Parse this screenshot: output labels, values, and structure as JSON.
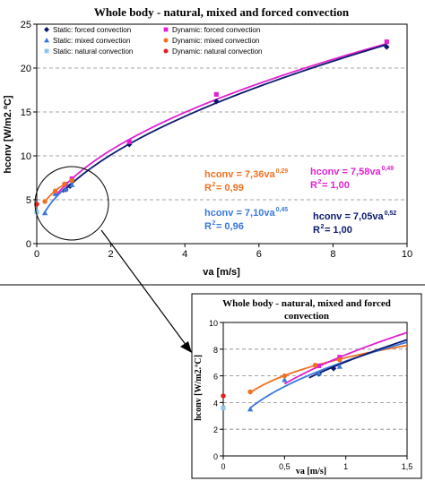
{
  "colors": {
    "forced": "#0b1a6e",
    "mixed": "#3a78d8",
    "natural": "#8cc6f0",
    "dyn_forced": "#e020d0",
    "dyn_mixed": "#f07020",
    "dyn_natural": "#e02020"
  },
  "chart_data": [
    {
      "type": "scatter",
      "title": "Whole body - natural, mixed and forced convection",
      "xlabel": "va [m/s]",
      "ylabel": "hconv [W/m2.ºC]",
      "xlim": [
        0,
        10
      ],
      "ylim": [
        0,
        25
      ],
      "xticks": [
        "0",
        "2",
        "4",
        "6",
        "8",
        "10"
      ],
      "yticks": [
        "0",
        "5",
        "10",
        "15",
        "20",
        "25"
      ],
      "grid": "horizontal dashed",
      "legend_position": "top-left",
      "series": [
        {
          "name": "Static: forced convection",
          "marker": "diamond",
          "color_key": "forced",
          "points": [
            [
              0.78,
              6.15
            ],
            [
              0.9,
              6.55
            ],
            [
              2.5,
              11.3
            ],
            [
              4.85,
              16.2
            ],
            [
              9.45,
              22.4
            ]
          ]
        },
        {
          "name": "Dynamic: forced convection",
          "marker": "square",
          "color_key": "dyn_forced",
          "points": [
            [
              0.78,
              6.75
            ],
            [
              0.95,
              7.4
            ],
            [
              2.5,
              11.6
            ],
            [
              4.85,
              17.0
            ],
            [
              9.45,
              23.0
            ]
          ]
        },
        {
          "name": "Static: mixed convection",
          "marker": "triangle",
          "color_key": "mixed",
          "points": [
            [
              0.22,
              3.5
            ],
            [
              0.5,
              5.7
            ],
            [
              0.78,
              6.2
            ],
            [
              0.95,
              6.7
            ]
          ]
        },
        {
          "name": "Dynamic: mixed convection",
          "marker": "circle",
          "color_key": "dyn_mixed",
          "points": [
            [
              0.22,
              4.8
            ],
            [
              0.5,
              6.0
            ],
            [
              0.75,
              6.8
            ],
            [
              0.95,
              7.2
            ]
          ]
        },
        {
          "name": "Static: natural convection",
          "marker": "square",
          "color_key": "natural",
          "points": [
            [
              0,
              3.6
            ]
          ]
        },
        {
          "name": "Dynamic: natural convection",
          "marker": "circle",
          "color_key": "dyn_natural",
          "points": [
            [
              0,
              4.5
            ]
          ]
        }
      ],
      "fits": [
        {
          "label": "hconv = 7,36va",
          "exponent": "0,29",
          "r2_label": "R",
          "r2_sup": "2",
          "r2_value": " = 0,99",
          "color_key": "dyn_mixed",
          "coef": 7.36,
          "exp": 0.29,
          "x_from": 0.22,
          "x_to": 0.95
        },
        {
          "label": "hconv = 7,58va",
          "exponent": "0,49",
          "r2_label": "R",
          "r2_sup": "2",
          "r2_value": " = 1,00",
          "color_key": "dyn_forced",
          "coef": 7.58,
          "exp": 0.49,
          "x_from": 0.5,
          "x_to": 9.45
        },
        {
          "label": "hconv = 7,10va",
          "exponent": "0,45",
          "r2_label": "R",
          "r2_sup": "2",
          "r2_value": " = 0,96",
          "color_key": "mixed",
          "coef": 7.1,
          "exp": 0.45,
          "x_from": 0.22,
          "x_to": 0.95
        },
        {
          "label": "hconv = 7,05va",
          "exponent": "0,52",
          "r2_label": "R",
          "r2_sup": "2",
          "r2_value": " = 1,00",
          "color_key": "forced",
          "coef": 7.05,
          "exp": 0.52,
          "x_from": 0.7,
          "x_to": 9.45
        }
      ]
    },
    {
      "type": "scatter",
      "title_line1": "Whole body - natural, mixed and forced",
      "title_line2": "convection",
      "xlabel": "va [m/s]",
      "ylabel": "hconv [W/m2.ºC]",
      "xlim": [
        0,
        1.5
      ],
      "ylim": [
        0,
        10
      ],
      "xticks": [
        "0",
        "0,5",
        "1",
        "1,5"
      ],
      "yticks": [
        "0",
        "2",
        "4",
        "6",
        "8",
        "10"
      ],
      "grid": "horizontal dashed"
    }
  ]
}
